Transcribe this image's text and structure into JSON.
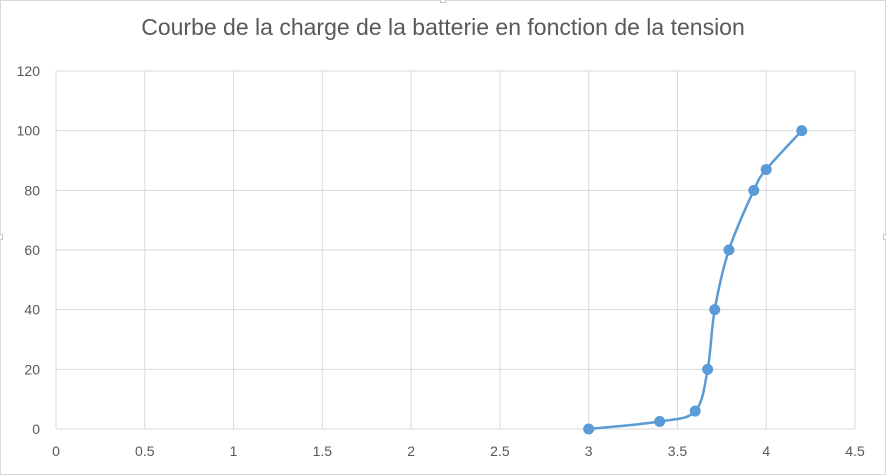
{
  "chart_data": {
    "type": "scatter",
    "title": "Courbe de la charge de la batterie en fonction de la tension",
    "xlabel": "",
    "ylabel": "",
    "xlim": [
      0,
      4.5
    ],
    "ylim": [
      0,
      120
    ],
    "x_ticks": [
      "0",
      "0.5",
      "1",
      "1.5",
      "2",
      "2.5",
      "3",
      "3.5",
      "4",
      "4.5"
    ],
    "y_ticks": [
      "0",
      "20",
      "40",
      "60",
      "80",
      "100",
      "120"
    ],
    "grid": true,
    "legend": "none",
    "series": [
      {
        "color": "#5b9bd5",
        "smooth_line": true,
        "points": [
          {
            "x": 3.0,
            "y": 0
          },
          {
            "x": 3.4,
            "y": 2.5
          },
          {
            "x": 3.6,
            "y": 6
          },
          {
            "x": 3.67,
            "y": 20
          },
          {
            "x": 3.71,
            "y": 40
          },
          {
            "x": 3.79,
            "y": 60
          },
          {
            "x": 3.93,
            "y": 80
          },
          {
            "x": 4.0,
            "y": 87
          },
          {
            "x": 4.2,
            "y": 100
          }
        ]
      }
    ]
  }
}
